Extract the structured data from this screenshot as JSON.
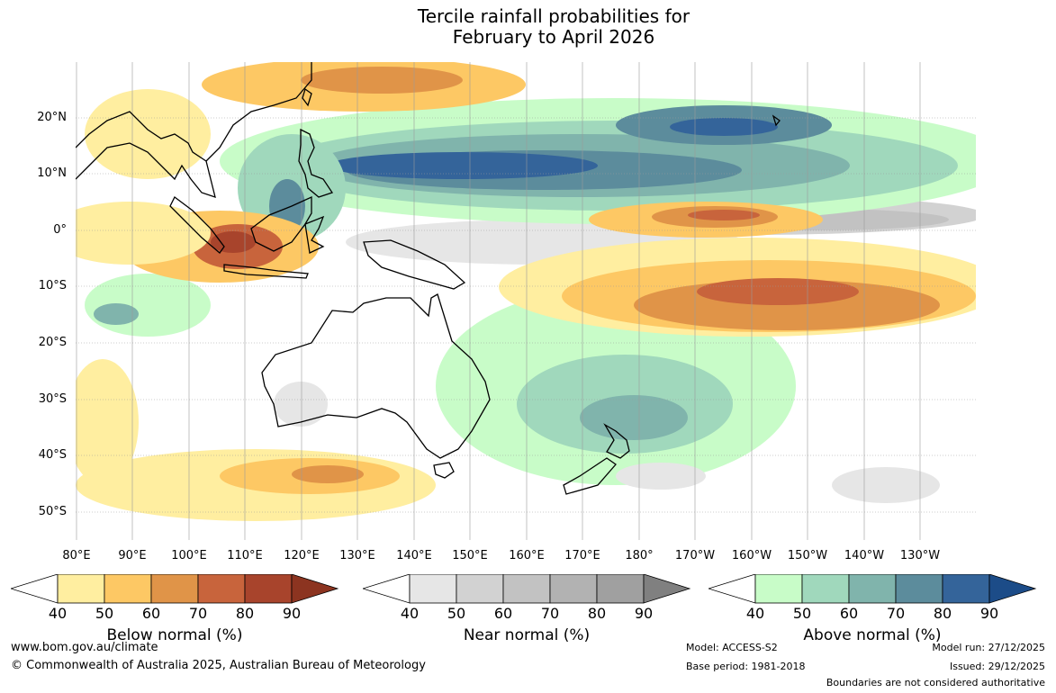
{
  "title_line1": "Tercile rainfall probabilities for",
  "title_line2": "February to April 2026",
  "lat_labels": [
    "20°N",
    "10°N",
    "0°",
    "10°S",
    "20°S",
    "30°S",
    "40°S",
    "50°S"
  ],
  "lon_labels": [
    "80°E",
    "90°E",
    "100°E",
    "110°E",
    "120°E",
    "130°E",
    "140°E",
    "150°E",
    "160°E",
    "170°E",
    "180°",
    "170°W",
    "160°W",
    "150°W",
    "140°W",
    "130°W"
  ],
  "colorbars": [
    {
      "title": "Below normal (%)",
      "ticks": [
        "40",
        "50",
        "60",
        "70",
        "80",
        "90"
      ],
      "colors": [
        "#ffeea0",
        "#fdc864",
        "#e09448",
        "#c8643c",
        "#a8442c"
      ],
      "arrow": "#8c3420"
    },
    {
      "title": "Near normal (%)",
      "ticks": [
        "40",
        "50",
        "60",
        "70",
        "80",
        "90"
      ],
      "colors": [
        "#e6e6e6",
        "#d2d2d2",
        "#c2c2c2",
        "#b2b2b2",
        "#a0a0a0"
      ],
      "arrow": "#808080"
    },
    {
      "title": "Above normal (%)",
      "ticks": [
        "40",
        "50",
        "60",
        "70",
        "80",
        "90"
      ],
      "colors": [
        "#c8fcc8",
        "#a0d8bc",
        "#80b4ac",
        "#5c8c9c",
        "#34649a"
      ],
      "arrow": "#1c4c88"
    }
  ],
  "footer": {
    "website": "www.bom.gov.au/climate",
    "copyright": "© Commonwealth of Australia 2025, Australian Bureau of Meteorology",
    "model": "Model: ACCESS-S2",
    "base_period": "Base period: 1981-2018",
    "model_run": "Model run: 27/12/2025",
    "issued": "Issued: 29/12/2025",
    "disclaimer": "Boundaries are not considered authoritative"
  }
}
